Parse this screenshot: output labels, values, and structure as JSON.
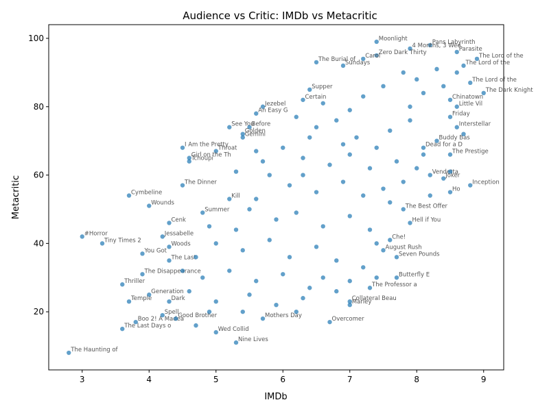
{
  "chart_data": {
    "type": "scatter",
    "title": "Audience vs Critic: IMDb vs Metacritic",
    "xlabel": "IMDb",
    "ylabel": "Metacritic",
    "xlim": [
      2.5,
      9.3
    ],
    "ylim": [
      3,
      104
    ],
    "xticks": [
      3,
      4,
      5,
      6,
      7,
      8,
      9
    ],
    "yticks": [
      20,
      40,
      60,
      80,
      100
    ],
    "grid": false,
    "marker_color": "#1f77b4",
    "label_color": "#555555",
    "points": [
      {
        "label": "Moonlight",
        "x": 7.4,
        "y": 99
      },
      {
        "label": "Pans Labyrinth",
        "x": 8.2,
        "y": 98
      },
      {
        "label": "4 Months, 3 Wee",
        "x": 7.9,
        "y": 97
      },
      {
        "label": "Parasite",
        "x": 8.6,
        "y": 96
      },
      {
        "label": "Zero Dark Thirty",
        "x": 7.4,
        "y": 95
      },
      {
        "label": "Carol",
        "x": 7.2,
        "y": 94
      },
      {
        "label": "The Lord of the",
        "x": 8.9,
        "y": 94
      },
      {
        "label": "The Burial of",
        "x": 6.5,
        "y": 93
      },
      {
        "label": "Sundays",
        "x": 6.9,
        "y": 92
      },
      {
        "label": "The Lord of the",
        "x": 8.7,
        "y": 92
      },
      {
        "label": "The Lord of the",
        "x": 8.8,
        "y": 87
      },
      {
        "label": "The Dark Knight",
        "x": 9.0,
        "y": 84
      },
      {
        "label": "Supper",
        "x": 6.4,
        "y": 85
      },
      {
        "label": "Certain",
        "x": 6.3,
        "y": 82
      },
      {
        "label": "Jezebel",
        "x": 5.7,
        "y": 80
      },
      {
        "label": "Chinatown",
        "x": 8.5,
        "y": 82
      },
      {
        "label": "Little Vil",
        "x": 8.6,
        "y": 80
      },
      {
        "label": "An Easy G",
        "x": 5.6,
        "y": 78
      },
      {
        "label": "Friday",
        "x": 8.5,
        "y": 77
      },
      {
        "label": "See You",
        "x": 5.2,
        "y": 74
      },
      {
        "label": "Before",
        "x": 5.5,
        "y": 74
      },
      {
        "label": "Golden",
        "x": 5.4,
        "y": 72
      },
      {
        "label": "Gemini",
        "x": 5.4,
        "y": 71
      },
      {
        "label": "Interstellar",
        "x": 8.6,
        "y": 74
      },
      {
        "label": "Buddy Bas",
        "x": 8.3,
        "y": 70
      },
      {
        "label": "Dead for a D",
        "x": 8.1,
        "y": 68
      },
      {
        "label": "I Am the Pretty",
        "x": 4.5,
        "y": 68
      },
      {
        "label": "Throat",
        "x": 5.0,
        "y": 67
      },
      {
        "label": "The Prestige",
        "x": 8.5,
        "y": 66
      },
      {
        "label": "Girl on the Th",
        "x": 4.6,
        "y": 65
      },
      {
        "label": "Tchoupi",
        "x": 4.6,
        "y": 64
      },
      {
        "label": "Vendetta",
        "x": 8.2,
        "y": 60
      },
      {
        "label": "Joker",
        "x": 8.4,
        "y": 59
      },
      {
        "label": "Inception",
        "x": 8.8,
        "y": 57
      },
      {
        "label": "Ho",
        "x": 8.5,
        "y": 55
      },
      {
        "label": "The Dinner",
        "x": 4.5,
        "y": 57
      },
      {
        "label": "The Best Offer",
        "x": 7.8,
        "y": 50
      },
      {
        "label": "Cymbeline",
        "x": 3.7,
        "y": 54
      },
      {
        "label": "Wounds",
        "x": 4.0,
        "y": 51
      },
      {
        "label": "Summer",
        "x": 4.8,
        "y": 49
      },
      {
        "label": "Kill",
        "x": 5.2,
        "y": 53
      },
      {
        "label": "Cenk",
        "x": 4.3,
        "y": 46
      },
      {
        "label": "Hell if You",
        "x": 7.9,
        "y": 46
      },
      {
        "label": "#Horror",
        "x": 3.0,
        "y": 42
      },
      {
        "label": "Tiny Times 2",
        "x": 3.3,
        "y": 40
      },
      {
        "label": "Jessabelle",
        "x": 4.2,
        "y": 42
      },
      {
        "label": "Che!",
        "x": 7.6,
        "y": 41
      },
      {
        "label": "August Rush",
        "x": 7.5,
        "y": 38
      },
      {
        "label": "You Got",
        "x": 3.9,
        "y": 37
      },
      {
        "label": "Seven Pounds",
        "x": 7.7,
        "y": 36
      },
      {
        "label": "Woods",
        "x": 4.3,
        "y": 39
      },
      {
        "label": "The Last",
        "x": 4.3,
        "y": 35
      },
      {
        "label": "The Disappearance",
        "x": 3.9,
        "y": 31
      },
      {
        "label": "Thriller",
        "x": 3.6,
        "y": 28
      },
      {
        "label": "Butterfly E",
        "x": 7.7,
        "y": 30
      },
      {
        "label": "The Professor a",
        "x": 7.3,
        "y": 27
      },
      {
        "label": "Generation",
        "x": 4.0,
        "y": 25
      },
      {
        "label": "Temple",
        "x": 3.7,
        "y": 23
      },
      {
        "label": "Dark",
        "x": 4.3,
        "y": 23
      },
      {
        "label": "Collateral Beau",
        "x": 7.0,
        "y": 23
      },
      {
        "label": "Marley",
        "x": 7.0,
        "y": 22
      },
      {
        "label": "Overcomer",
        "x": 6.7,
        "y": 17
      },
      {
        "label": "Mothers Day",
        "x": 5.7,
        "y": 18
      },
      {
        "label": "Nine Lives",
        "x": 5.3,
        "y": 11
      },
      {
        "label": "Wed Collid",
        "x": 5.0,
        "y": 14
      },
      {
        "label": "The Last Days o",
        "x": 3.6,
        "y": 15
      },
      {
        "label": "Boo 2! A Madea",
        "x": 3.8,
        "y": 17
      },
      {
        "label": "Good Brother",
        "x": 4.4,
        "y": 18
      },
      {
        "label": "Spell",
        "x": 4.2,
        "y": 19
      },
      {
        "label": "The Haunting of",
        "x": 2.8,
        "y": 8
      },
      {
        "label": "",
        "x": 6.2,
        "y": 77
      },
      {
        "label": "",
        "x": 6.5,
        "y": 74
      },
      {
        "label": "",
        "x": 6.8,
        "y": 76
      },
      {
        "label": "",
        "x": 7.1,
        "y": 71
      },
      {
        "label": "",
        "x": 7.6,
        "y": 73
      },
      {
        "label": "",
        "x": 7.9,
        "y": 76
      },
      {
        "label": "",
        "x": 6.0,
        "y": 68
      },
      {
        "label": "",
        "x": 6.3,
        "y": 65
      },
      {
        "label": "",
        "x": 6.7,
        "y": 63
      },
      {
        "label": "",
        "x": 7.0,
        "y": 66
      },
      {
        "label": "",
        "x": 7.3,
        "y": 62
      },
      {
        "label": "",
        "x": 7.7,
        "y": 64
      },
      {
        "label": "",
        "x": 5.8,
        "y": 60
      },
      {
        "label": "",
        "x": 6.1,
        "y": 57
      },
      {
        "label": "",
        "x": 6.5,
        "y": 55
      },
      {
        "label": "",
        "x": 6.9,
        "y": 58
      },
      {
        "label": "",
        "x": 7.2,
        "y": 54
      },
      {
        "label": "",
        "x": 7.5,
        "y": 56
      },
      {
        "label": "",
        "x": 5.5,
        "y": 50
      },
      {
        "label": "",
        "x": 5.9,
        "y": 47
      },
      {
        "label": "",
        "x": 6.2,
        "y": 49
      },
      {
        "label": "",
        "x": 6.6,
        "y": 45
      },
      {
        "label": "",
        "x": 7.0,
        "y": 48
      },
      {
        "label": "",
        "x": 7.3,
        "y": 44
      },
      {
        "label": "",
        "x": 5.0,
        "y": 40
      },
      {
        "label": "",
        "x": 5.4,
        "y": 38
      },
      {
        "label": "",
        "x": 5.8,
        "y": 41
      },
      {
        "label": "",
        "x": 6.1,
        "y": 36
      },
      {
        "label": "",
        "x": 6.5,
        "y": 39
      },
      {
        "label": "",
        "x": 6.8,
        "y": 35
      },
      {
        "label": "",
        "x": 4.8,
        "y": 30
      },
      {
        "label": "",
        "x": 5.2,
        "y": 32
      },
      {
        "label": "",
        "x": 5.6,
        "y": 29
      },
      {
        "label": "",
        "x": 6.0,
        "y": 31
      },
      {
        "label": "",
        "x": 6.4,
        "y": 27
      },
      {
        "label": "",
        "x": 6.6,
        "y": 30
      },
      {
        "label": "",
        "x": 4.6,
        "y": 26
      },
      {
        "label": "",
        "x": 5.0,
        "y": 23
      },
      {
        "label": "",
        "x": 5.5,
        "y": 25
      },
      {
        "label": "",
        "x": 5.9,
        "y": 22
      },
      {
        "label": "",
        "x": 6.3,
        "y": 24
      },
      {
        "label": "",
        "x": 7.8,
        "y": 90
      },
      {
        "label": "",
        "x": 8.0,
        "y": 88
      },
      {
        "label": "",
        "x": 8.3,
        "y": 91
      },
      {
        "label": "",
        "x": 7.5,
        "y": 86
      },
      {
        "label": "",
        "x": 7.2,
        "y": 83
      },
      {
        "label": "",
        "x": 8.1,
        "y": 84
      },
      {
        "label": "",
        "x": 7.9,
        "y": 80
      },
      {
        "label": "",
        "x": 8.4,
        "y": 86
      },
      {
        "label": "",
        "x": 7.0,
        "y": 79
      },
      {
        "label": "",
        "x": 6.6,
        "y": 81
      },
      {
        "label": "",
        "x": 7.4,
        "y": 68
      },
      {
        "label": "",
        "x": 8.0,
        "y": 62
      },
      {
        "label": "",
        "x": 7.8,
        "y": 58
      },
      {
        "label": "",
        "x": 8.2,
        "y": 54
      },
      {
        "label": "",
        "x": 7.6,
        "y": 52
      },
      {
        "label": "",
        "x": 7.4,
        "y": 40
      },
      {
        "label": "",
        "x": 7.2,
        "y": 33
      },
      {
        "label": "",
        "x": 7.0,
        "y": 29
      },
      {
        "label": "",
        "x": 5.3,
        "y": 44
      },
      {
        "label": "",
        "x": 4.9,
        "y": 45
      },
      {
        "label": "",
        "x": 4.7,
        "y": 36
      },
      {
        "label": "",
        "x": 4.5,
        "y": 32
      },
      {
        "label": "",
        "x": 5.7,
        "y": 64
      },
      {
        "label": "",
        "x": 5.3,
        "y": 61
      },
      {
        "label": "",
        "x": 5.6,
        "y": 67
      },
      {
        "label": "",
        "x": 6.4,
        "y": 71
      },
      {
        "label": "",
        "x": 6.9,
        "y": 69
      },
      {
        "label": "",
        "x": 6.3,
        "y": 60
      },
      {
        "label": "",
        "x": 5.6,
        "y": 53
      },
      {
        "label": "",
        "x": 4.9,
        "y": 20
      },
      {
        "label": "",
        "x": 5.4,
        "y": 20
      },
      {
        "label": "",
        "x": 4.7,
        "y": 16
      },
      {
        "label": "",
        "x": 6.2,
        "y": 20
      },
      {
        "label": "",
        "x": 6.8,
        "y": 26
      },
      {
        "label": "",
        "x": 7.4,
        "y": 30
      },
      {
        "label": "",
        "x": 8.1,
        "y": 66
      },
      {
        "label": "",
        "x": 8.5,
        "y": 61
      },
      {
        "label": "",
        "x": 8.7,
        "y": 72
      },
      {
        "label": "",
        "x": 8.6,
        "y": 90
      }
    ]
  }
}
